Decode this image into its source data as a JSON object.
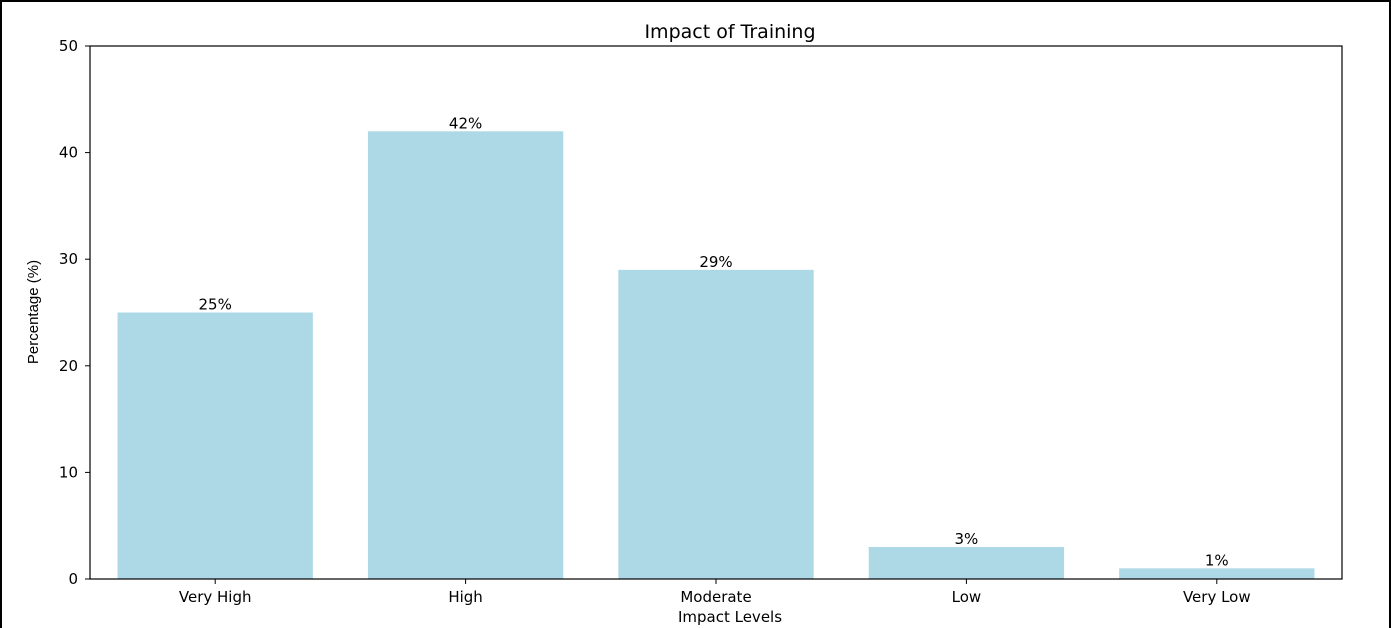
{
  "chart_data": {
    "type": "bar",
    "title": "Impact of Training",
    "xlabel": "Impact Levels",
    "ylabel": "Percentage (%)",
    "categories": [
      "Very High",
      "High",
      "Moderate",
      "Low",
      "Very Low"
    ],
    "values": [
      25,
      42,
      29,
      3,
      1
    ],
    "data_labels": [
      "25%",
      "42%",
      "29%",
      "3%",
      "1%"
    ],
    "ylim": [
      0,
      50
    ],
    "yticks": [
      0,
      10,
      20,
      30,
      40,
      50
    ],
    "ytick_labels": [
      "0",
      "10",
      "20",
      "30",
      "40",
      "50"
    ],
    "grid": false,
    "legend": "none",
    "bar_color": "#add8e6"
  }
}
